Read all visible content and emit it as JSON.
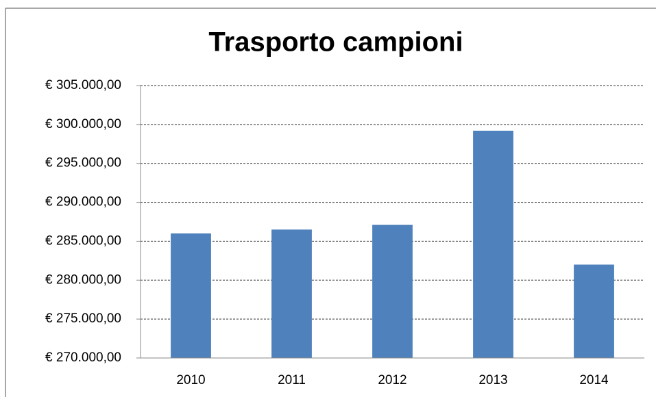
{
  "chart_data": {
    "type": "bar",
    "title": "Trasporto campioni",
    "categories": [
      "2010",
      "2011",
      "2012",
      "2013",
      "2014"
    ],
    "values": [
      286000,
      286500,
      287100,
      299200,
      282000
    ],
    "color": "#4f81bd",
    "ylim": [
      270000,
      305000
    ],
    "yticks": [
      {
        "value": 270000,
        "label": "€ 270.000,00"
      },
      {
        "value": 275000,
        "label": "€ 275.000,00"
      },
      {
        "value": 280000,
        "label": "€ 280.000,00"
      },
      {
        "value": 285000,
        "label": "€ 285.000,00"
      },
      {
        "value": 290000,
        "label": "€ 290.000,00"
      },
      {
        "value": 295000,
        "label": "€ 295.000,00"
      },
      {
        "value": 300000,
        "label": "€ 300.000,00"
      },
      {
        "value": 305000,
        "label": "€ 305.000,00"
      }
    ],
    "grid": true
  }
}
